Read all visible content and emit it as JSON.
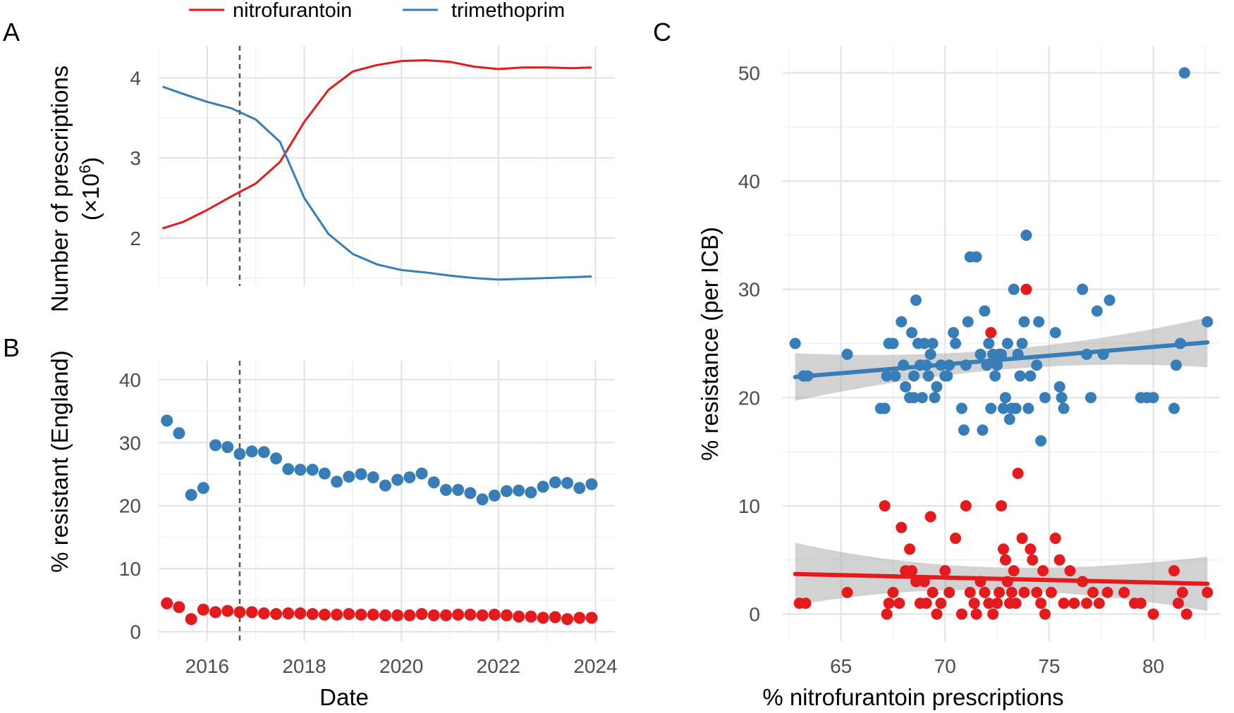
{
  "figure": {
    "panel_labels": [
      "A",
      "B",
      "C"
    ],
    "legend": [
      {
        "name": "nitrofurantoin",
        "color": "#E41A1C"
      },
      {
        "name": "trimethoprim",
        "color": "#377EB8"
      }
    ]
  },
  "chart_data": [
    {
      "id": "A",
      "type": "line",
      "ylabel_line1": "Number of prescriptions",
      "ylabel_line2": "(×10",
      "ylabel_sup": "6",
      "ylabel_close": ")",
      "xlim": [
        2015,
        2024.4
      ],
      "ylim": [
        1.4,
        4.4
      ],
      "yticks": [
        2,
        3,
        4
      ],
      "ytick_labels": [
        "2",
        "3",
        "4"
      ],
      "vline_x": 2016.67,
      "series": [
        {
          "name": "nitrofurantoin",
          "color": "#E41A1C",
          "x": [
            2015.08,
            2015.5,
            2016,
            2016.5,
            2017,
            2017.5,
            2018,
            2018.5,
            2019,
            2019.5,
            2020,
            2020.5,
            2021,
            2021.5,
            2022,
            2022.5,
            2023,
            2023.5,
            2023.92
          ],
          "y": [
            2.12,
            2.2,
            2.35,
            2.52,
            2.68,
            2.95,
            3.45,
            3.85,
            4.08,
            4.16,
            4.21,
            4.22,
            4.2,
            4.14,
            4.11,
            4.13,
            4.13,
            4.12,
            4.13
          ]
        },
        {
          "name": "trimethoprim",
          "color": "#377EB8",
          "x": [
            2015.08,
            2015.5,
            2016,
            2016.5,
            2017,
            2017.5,
            2018,
            2018.5,
            2019,
            2019.5,
            2020,
            2020.5,
            2021,
            2021.5,
            2022,
            2022.5,
            2023,
            2023.5,
            2023.92
          ],
          "y": [
            3.89,
            3.8,
            3.7,
            3.62,
            3.48,
            3.2,
            2.5,
            2.05,
            1.8,
            1.67,
            1.6,
            1.57,
            1.53,
            1.5,
            1.48,
            1.49,
            1.5,
            1.51,
            1.52
          ]
        }
      ]
    },
    {
      "id": "B",
      "type": "scatter",
      "ylabel": "% resistant (England)",
      "xlabel": "Date",
      "xlim": [
        2015,
        2024.4
      ],
      "ylim": [
        -1.5,
        43
      ],
      "xticks": [
        2016,
        2018,
        2020,
        2022,
        2024
      ],
      "xtick_labels": [
        "2016",
        "2018",
        "2020",
        "2022",
        "2024"
      ],
      "yticks": [
        0,
        10,
        20,
        30,
        40
      ],
      "ytick_labels": [
        "0",
        "10",
        "20",
        "30",
        "40"
      ],
      "vline_x": 2016.67,
      "series": [
        {
          "name": "trimethoprim",
          "color": "#377EB8",
          "x": [
            2015.17,
            2015.42,
            2015.67,
            2015.92,
            2016.17,
            2016.42,
            2016.67,
            2016.92,
            2017.17,
            2017.42,
            2017.67,
            2017.92,
            2018.17,
            2018.42,
            2018.67,
            2018.92,
            2019.17,
            2019.42,
            2019.67,
            2019.92,
            2020.17,
            2020.42,
            2020.67,
            2020.92,
            2021.17,
            2021.42,
            2021.67,
            2021.92,
            2022.17,
            2022.42,
            2022.67,
            2022.92,
            2023.17,
            2023.42,
            2023.67,
            2023.92
          ],
          "y": [
            33.5,
            31.5,
            21.7,
            22.8,
            29.6,
            29.3,
            28.2,
            28.6,
            28.5,
            27.5,
            25.8,
            25.7,
            25.7,
            25.1,
            23.8,
            24.6,
            25.0,
            24.5,
            23.2,
            24.1,
            24.5,
            25.1,
            23.7,
            22.5,
            22.5,
            22.0,
            21.0,
            21.6,
            22.3,
            22.4,
            22.1,
            23.0,
            23.7,
            23.6,
            22.8,
            23.4
          ]
        },
        {
          "name": "nitrofurantoin",
          "color": "#E41A1C",
          "x": [
            2015.17,
            2015.42,
            2015.67,
            2015.92,
            2016.17,
            2016.42,
            2016.67,
            2016.92,
            2017.17,
            2017.42,
            2017.67,
            2017.92,
            2018.17,
            2018.42,
            2018.67,
            2018.92,
            2019.17,
            2019.42,
            2019.67,
            2019.92,
            2020.17,
            2020.42,
            2020.67,
            2020.92,
            2021.17,
            2021.42,
            2021.67,
            2021.92,
            2022.17,
            2022.42,
            2022.67,
            2022.92,
            2023.17,
            2023.42,
            2023.67,
            2023.92
          ],
          "y": [
            4.5,
            3.9,
            2.0,
            3.5,
            3.1,
            3.3,
            3.1,
            3.1,
            2.9,
            2.8,
            2.9,
            2.9,
            2.8,
            2.7,
            2.7,
            2.8,
            2.7,
            2.7,
            2.6,
            2.6,
            2.6,
            2.8,
            2.6,
            2.6,
            2.7,
            2.7,
            2.6,
            2.7,
            2.6,
            2.4,
            2.4,
            2.2,
            2.3,
            2.0,
            2.2,
            2.2
          ]
        }
      ]
    },
    {
      "id": "C",
      "type": "scatter",
      "xlabel": "% nitrofurantoin prescriptions",
      "ylabel": "% resistance (per ICB)",
      "xlim": [
        62.2,
        83.2
      ],
      "ylim": [
        -2.5,
        52.5
      ],
      "xticks": [
        65,
        70,
        75,
        80
      ],
      "xtick_labels": [
        "65",
        "70",
        "75",
        "80"
      ],
      "yticks": [
        0,
        10,
        20,
        30,
        40,
        50
      ],
      "ytick_labels": [
        "0",
        "10",
        "20",
        "30",
        "40",
        "50"
      ],
      "series": [
        {
          "name": "trimethoprim",
          "color": "#377EB8",
          "fit": {
            "x0": 62.8,
            "y0": 21.9,
            "x1": 82.6,
            "y1": 25.1,
            "ci0": 2.2,
            "ci1": 2.3
          },
          "x": [
            62.8,
            63.2,
            63.4,
            65.3,
            66.9,
            67.1,
            67.2,
            67.3,
            67.5,
            67.6,
            67.9,
            68.0,
            68.1,
            68.3,
            68.4,
            68.5,
            68.5,
            68.6,
            68.7,
            68.8,
            68.9,
            69.0,
            69.1,
            69.2,
            69.3,
            69.4,
            69.5,
            69.6,
            69.8,
            70.0,
            70.1,
            70.2,
            70.4,
            70.5,
            70.8,
            70.9,
            71.0,
            71.1,
            71.2,
            71.5,
            71.7,
            71.8,
            71.9,
            72.0,
            72.1,
            72.2,
            72.3,
            72.4,
            72.5,
            72.6,
            72.7,
            72.8,
            72.9,
            73.0,
            73.1,
            73.2,
            73.3,
            73.4,
            73.5,
            73.6,
            73.7,
            73.8,
            73.9,
            74.0,
            74.1,
            74.4,
            74.5,
            74.6,
            74.8,
            75.3,
            75.5,
            75.6,
            75.7,
            76.6,
            76.8,
            77.0,
            77.3,
            77.6,
            77.9,
            79.4,
            79.7,
            80.0,
            81.0,
            81.1,
            81.3,
            81.5,
            82.6
          ],
          "y": [
            25,
            22,
            22,
            24,
            19,
            19,
            22,
            25,
            25,
            22,
            27,
            23,
            21,
            20,
            26,
            22,
            20,
            29,
            25,
            23,
            20,
            25,
            23,
            22,
            24,
            25,
            20,
            21,
            23,
            22,
            22,
            23,
            26,
            25,
            19,
            17,
            23,
            27,
            33,
            33,
            24,
            17,
            28,
            23,
            25,
            19,
            24,
            22,
            23,
            24,
            24,
            19,
            20,
            25,
            18,
            19,
            30,
            19,
            24,
            22,
            25,
            27,
            35,
            19,
            22,
            23,
            27,
            16,
            20,
            26,
            21,
            20,
            19,
            30,
            24,
            20,
            28,
            24,
            29,
            20,
            20,
            20,
            19,
            23,
            25,
            50,
            27
          ]
        },
        {
          "name": "nitrofurantoin",
          "color": "#E41A1C",
          "fit": {
            "x0": 62.8,
            "y0": 3.7,
            "x1": 82.6,
            "y1": 2.8,
            "ci0": 2.9,
            "ci1": 2.5
          },
          "x": [
            63.0,
            63.3,
            65.3,
            67.1,
            67.2,
            67.3,
            67.5,
            67.8,
            67.9,
            68.1,
            68.3,
            68.4,
            68.6,
            68.8,
            69.0,
            69.1,
            69.3,
            69.4,
            69.6,
            69.8,
            70.0,
            70.2,
            70.5,
            70.8,
            71.0,
            71.2,
            71.4,
            71.5,
            71.7,
            71.9,
            72.1,
            72.2,
            72.3,
            72.5,
            72.6,
            72.7,
            72.8,
            72.9,
            73.0,
            73.1,
            73.2,
            73.3,
            73.4,
            73.5,
            73.7,
            73.8,
            73.9,
            74.1,
            74.2,
            74.4,
            74.6,
            74.7,
            74.8,
            75.1,
            75.3,
            75.5,
            75.7,
            76.0,
            76.2,
            76.6,
            76.8,
            77.1,
            77.4,
            77.8,
            78.6,
            79.1,
            79.4,
            80.0,
            81.0,
            81.2,
            81.4,
            81.6,
            82.6
          ],
          "y": [
            1,
            1,
            2,
            10,
            0,
            1,
            2,
            1,
            8,
            4,
            6,
            4,
            3,
            1,
            3,
            1,
            9,
            2,
            0,
            1,
            4,
            2,
            7,
            0,
            10,
            2,
            1,
            0,
            3,
            2,
            1,
            26,
            0,
            1,
            2,
            10,
            6,
            5,
            3,
            1,
            2,
            4,
            1,
            13,
            7,
            2,
            30,
            6,
            5,
            2,
            1,
            4,
            0,
            2,
            7,
            5,
            1,
            4,
            1,
            3,
            1,
            2,
            1,
            2,
            2,
            1,
            1,
            0,
            4,
            1,
            2,
            0,
            2
          ]
        }
      ]
    }
  ]
}
